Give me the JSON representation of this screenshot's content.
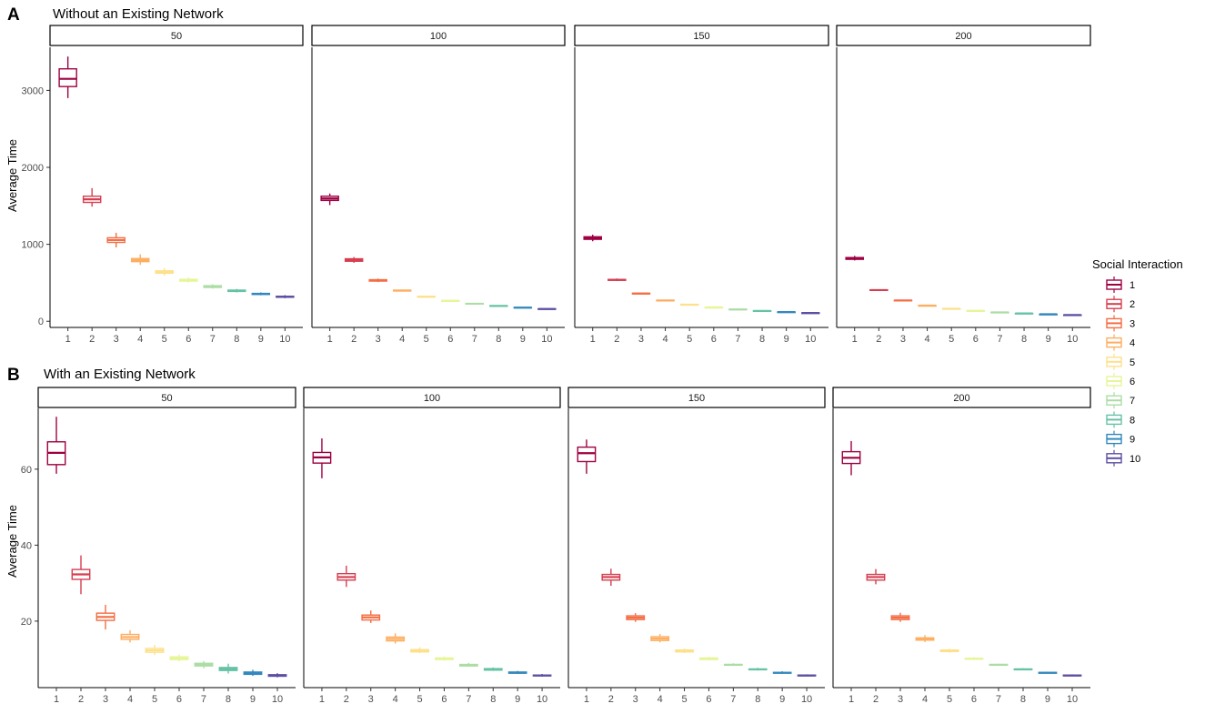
{
  "chart_data": [
    {
      "type": "box",
      "panel_label": "A",
      "title": "Without an Existing Network",
      "ylabel": "Average Time",
      "xlabel": "",
      "ylim": [
        -80,
        3560
      ],
      "yticks": [
        0,
        1000,
        2000,
        3000
      ],
      "categories": [
        "1",
        "2",
        "3",
        "4",
        "5",
        "6",
        "7",
        "8",
        "9",
        "10"
      ],
      "facets": [
        {
          "label": "50",
          "boxes": [
            {
              "min": 2900,
              "q1": 3050,
              "median": 3150,
              "q3": 3280,
              "max": 3440
            },
            {
              "min": 1490,
              "q1": 1545,
              "median": 1585,
              "q3": 1625,
              "max": 1730
            },
            {
              "min": 960,
              "q1": 1025,
              "median": 1055,
              "q3": 1085,
              "max": 1150
            },
            {
              "min": 735,
              "q1": 775,
              "median": 795,
              "q3": 815,
              "max": 870
            },
            {
              "min": 595,
              "q1": 625,
              "median": 638,
              "q3": 655,
              "max": 690
            },
            {
              "min": 505,
              "q1": 522,
              "median": 532,
              "q3": 545,
              "max": 570
            },
            {
              "min": 425,
              "q1": 440,
              "median": 452,
              "q3": 462,
              "max": 480
            },
            {
              "min": 375,
              "q1": 388,
              "median": 396,
              "q3": 405,
              "max": 420
            },
            {
              "min": 338,
              "q1": 349,
              "median": 355,
              "q3": 362,
              "max": 375
            },
            {
              "min": 300,
              "q1": 312,
              "median": 318,
              "q3": 325,
              "max": 340
            }
          ]
        },
        {
          "label": "100",
          "boxes": [
            {
              "min": 1510,
              "q1": 1570,
              "median": 1595,
              "q3": 1625,
              "max": 1660
            },
            {
              "min": 760,
              "q1": 780,
              "median": 797,
              "q3": 812,
              "max": 835
            },
            {
              "min": 510,
              "q1": 522,
              "median": 530,
              "q3": 540,
              "max": 555
            },
            {
              "min": 388,
              "q1": 394,
              "median": 399,
              "q3": 404,
              "max": 412
            },
            {
              "min": 312,
              "q1": 316,
              "median": 319,
              "q3": 323,
              "max": 330
            },
            {
              "min": 260,
              "q1": 264,
              "median": 266,
              "q3": 268,
              "max": 273
            },
            {
              "min": 223,
              "q1": 226,
              "median": 228,
              "q3": 231,
              "max": 235
            },
            {
              "min": 196,
              "q1": 199,
              "median": 200,
              "q3": 202,
              "max": 205
            },
            {
              "min": 174,
              "q1": 176,
              "median": 178,
              "q3": 180,
              "max": 183
            },
            {
              "min": 157,
              "q1": 159,
              "median": 160,
              "q3": 162,
              "max": 165
            }
          ]
        },
        {
          "label": "150",
          "boxes": [
            {
              "min": 1040,
              "q1": 1065,
              "median": 1082,
              "q3": 1098,
              "max": 1125
            },
            {
              "min": 522,
              "q1": 532,
              "median": 538,
              "q3": 544,
              "max": 556
            },
            {
              "min": 352,
              "q1": 357,
              "median": 360,
              "q3": 364,
              "max": 370
            },
            {
              "min": 264,
              "q1": 267,
              "median": 270,
              "q3": 273,
              "max": 277
            },
            {
              "min": 212,
              "q1": 214,
              "median": 216,
              "q3": 218,
              "max": 221
            },
            {
              "min": 176,
              "q1": 178,
              "median": 180,
              "q3": 181,
              "max": 184
            },
            {
              "min": 151,
              "q1": 153,
              "median": 154,
              "q3": 156,
              "max": 158
            },
            {
              "min": 133,
              "q1": 134,
              "median": 135,
              "q3": 136,
              "max": 138
            },
            {
              "min": 118,
              "q1": 119,
              "median": 120,
              "q3": 121,
              "max": 123
            },
            {
              "min": 106,
              "q1": 107,
              "median": 108,
              "q3": 109,
              "max": 111
            }
          ]
        },
        {
          "label": "200",
          "boxes": [
            {
              "min": 790,
              "q1": 805,
              "median": 815,
              "q3": 828,
              "max": 850
            },
            {
              "min": 398,
              "q1": 402,
              "median": 405,
              "q3": 408,
              "max": 413
            },
            {
              "min": 266,
              "q1": 269,
              "median": 271,
              "q3": 273,
              "max": 276
            },
            {
              "min": 201,
              "q1": 203,
              "median": 204,
              "q3": 205,
              "max": 207
            },
            {
              "min": 160,
              "q1": 162,
              "median": 163,
              "q3": 164,
              "max": 166
            },
            {
              "min": 134,
              "q1": 135,
              "median": 136,
              "q3": 137,
              "max": 139
            },
            {
              "min": 114,
              "q1": 115,
              "median": 116,
              "q3": 117,
              "max": 119
            },
            {
              "min": 100,
              "q1": 101,
              "median": 102,
              "q3": 103,
              "max": 104
            },
            {
              "min": 89,
              "q1": 90,
              "median": 91,
              "q3": 91.5,
              "max": 93
            },
            {
              "min": 80,
              "q1": 81,
              "median": 82,
              "q3": 82.5,
              "max": 84
            }
          ]
        }
      ]
    },
    {
      "type": "box",
      "panel_label": "B",
      "title": "With an Existing Network",
      "ylabel": "Average Time",
      "xlabel": "",
      "ylim": [
        2.5,
        76
      ],
      "yticks": [
        20,
        40,
        60
      ],
      "categories": [
        "1",
        "2",
        "3",
        "4",
        "5",
        "6",
        "7",
        "8",
        "9",
        "10"
      ],
      "facets": [
        {
          "label": "50",
          "boxes": [
            {
              "min": 58.8,
              "q1": 61.2,
              "median": 64.3,
              "q3": 67.2,
              "max": 73.8
            },
            {
              "min": 27.1,
              "q1": 31.0,
              "median": 32.3,
              "q3": 33.6,
              "max": 37.3
            },
            {
              "min": 17.8,
              "q1": 20.2,
              "median": 21.1,
              "q3": 22.1,
              "max": 24.3
            },
            {
              "min": 14.4,
              "q1": 15.2,
              "median": 15.8,
              "q3": 16.5,
              "max": 17.6
            },
            {
              "min": 11.1,
              "q1": 11.8,
              "median": 12.3,
              "q3": 12.8,
              "max": 13.7
            },
            {
              "min": 9.4,
              "q1": 9.9,
              "median": 10.2,
              "q3": 10.6,
              "max": 11.2
            },
            {
              "min": 7.6,
              "q1": 8.2,
              "median": 8.5,
              "q3": 8.9,
              "max": 9.5
            },
            {
              "min": 6.2,
              "q1": 7.0,
              "median": 7.4,
              "q3": 7.8,
              "max": 8.8
            },
            {
              "min": 5.6,
              "q1": 6.0,
              "median": 6.3,
              "q3": 6.6,
              "max": 7.2
            },
            {
              "min": 5.2,
              "q1": 5.5,
              "median": 5.7,
              "q3": 5.9,
              "max": 6.3
            }
          ]
        },
        {
          "label": "100",
          "boxes": [
            {
              "min": 57.6,
              "q1": 61.6,
              "median": 63.1,
              "q3": 64.4,
              "max": 68.1
            },
            {
              "min": 29.0,
              "q1": 30.8,
              "median": 31.6,
              "q3": 32.5,
              "max": 34.6
            },
            {
              "min": 19.5,
              "q1": 20.3,
              "median": 21.0,
              "q3": 21.6,
              "max": 22.8
            },
            {
              "min": 14.1,
              "q1": 14.8,
              "median": 15.3,
              "q3": 15.8,
              "max": 16.8
            },
            {
              "min": 11.6,
              "q1": 11.9,
              "median": 12.2,
              "q3": 12.5,
              "max": 13.1
            },
            {
              "min": 9.6,
              "q1": 9.9,
              "median": 10.1,
              "q3": 10.3,
              "max": 10.7
            },
            {
              "min": 8.0,
              "q1": 8.2,
              "median": 8.4,
              "q3": 8.6,
              "max": 9.0
            },
            {
              "min": 6.9,
              "q1": 7.1,
              "median": 7.3,
              "q3": 7.5,
              "max": 7.8
            },
            {
              "min": 6.1,
              "q1": 6.3,
              "median": 6.4,
              "q3": 6.6,
              "max": 6.9
            },
            {
              "min": 5.4,
              "q1": 5.6,
              "median": 5.7,
              "q3": 5.8,
              "max": 6.1
            }
          ]
        },
        {
          "label": "150",
          "boxes": [
            {
              "min": 58.8,
              "q1": 62.0,
              "median": 64.2,
              "q3": 65.8,
              "max": 67.8
            },
            {
              "min": 29.3,
              "q1": 30.8,
              "median": 31.6,
              "q3": 32.3,
              "max": 33.8
            },
            {
              "min": 19.8,
              "q1": 20.4,
              "median": 20.9,
              "q3": 21.4,
              "max": 22.1
            },
            {
              "min": 14.4,
              "q1": 14.9,
              "median": 15.4,
              "q3": 15.9,
              "max": 16.6
            },
            {
              "min": 11.6,
              "q1": 11.9,
              "median": 12.2,
              "q3": 12.4,
              "max": 12.8
            },
            {
              "min": 9.7,
              "q1": 9.9,
              "median": 10.1,
              "q3": 10.3,
              "max": 10.6
            },
            {
              "min": 8.2,
              "q1": 8.4,
              "median": 8.5,
              "q3": 8.6,
              "max": 8.9
            },
            {
              "min": 7.0,
              "q1": 7.2,
              "median": 7.3,
              "q3": 7.4,
              "max": 7.7
            },
            {
              "min": 6.1,
              "q1": 6.3,
              "median": 6.4,
              "q3": 6.5,
              "max": 6.8
            },
            {
              "min": 5.5,
              "q1": 5.6,
              "median": 5.7,
              "q3": 5.8,
              "max": 6.0
            }
          ]
        },
        {
          "label": "200",
          "boxes": [
            {
              "min": 58.4,
              "q1": 61.5,
              "median": 63.0,
              "q3": 64.6,
              "max": 67.4
            },
            {
              "min": 29.7,
              "q1": 30.8,
              "median": 31.6,
              "q3": 32.3,
              "max": 33.7
            },
            {
              "min": 19.8,
              "q1": 20.4,
              "median": 20.9,
              "q3": 21.4,
              "max": 22.2
            },
            {
              "min": 14.5,
              "q1": 15.0,
              "median": 15.3,
              "q3": 15.6,
              "max": 16.3
            },
            {
              "min": 11.7,
              "q1": 12.0,
              "median": 12.2,
              "q3": 12.4,
              "max": 12.7
            },
            {
              "min": 9.8,
              "q1": 10.0,
              "median": 10.1,
              "q3": 10.2,
              "max": 10.5
            },
            {
              "min": 8.3,
              "q1": 8.4,
              "median": 8.5,
              "q3": 8.6,
              "max": 8.8
            },
            {
              "min": 7.1,
              "q1": 7.2,
              "median": 7.3,
              "q3": 7.4,
              "max": 7.6
            },
            {
              "min": 6.2,
              "q1": 6.3,
              "median": 6.4,
              "q3": 6.5,
              "max": 6.7
            },
            {
              "min": 5.5,
              "q1": 5.6,
              "median": 5.7,
              "q3": 5.8,
              "max": 6.0
            }
          ]
        }
      ]
    }
  ],
  "legend": {
    "title": "Social Interaction",
    "placement": "right",
    "items": [
      {
        "label": "1",
        "color": "#9E0142"
      },
      {
        "label": "2",
        "color": "#D53E4F"
      },
      {
        "label": "3",
        "color": "#F46D43"
      },
      {
        "label": "4",
        "color": "#FDAE61"
      },
      {
        "label": "5",
        "color": "#FEE08B"
      },
      {
        "label": "6",
        "color": "#E6F598"
      },
      {
        "label": "7",
        "color": "#ABDDA4"
      },
      {
        "label": "8",
        "color": "#66C2A5"
      },
      {
        "label": "9",
        "color": "#3288BD"
      },
      {
        "label": "10",
        "color": "#5E4FA2"
      }
    ]
  }
}
